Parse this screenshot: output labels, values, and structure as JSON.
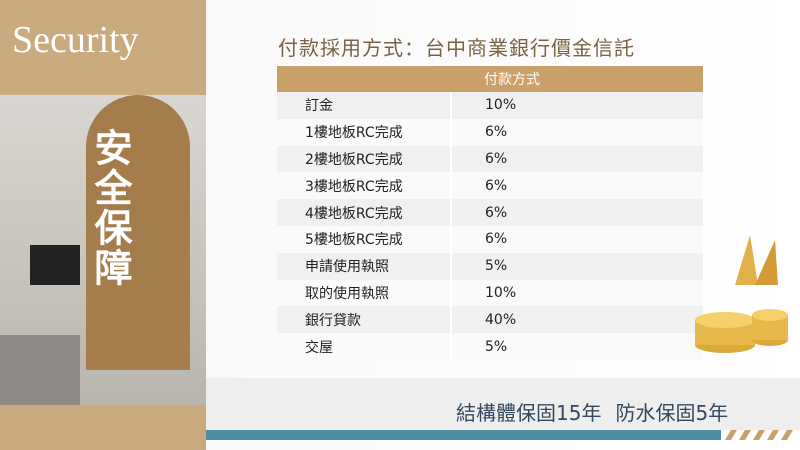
{
  "header": {
    "title": "Security",
    "side_title": "安全保障"
  },
  "table": {
    "title": "付款採用方式：台中商業銀行價金信託",
    "column_header": "付款方式",
    "rows": [
      [
        "訂金",
        "10%"
      ],
      [
        "1樓地板RC完成",
        "6%"
      ],
      [
        "2樓地板RC完成",
        "6%"
      ],
      [
        "3樓地板RC完成",
        "6%"
      ],
      [
        "4樓地板RC完成",
        "6%"
      ],
      [
        "5樓地板RC完成",
        "6%"
      ],
      [
        "申請使用執照",
        "5%"
      ],
      [
        "取的使用執照",
        "10%"
      ],
      [
        "銀行貸款",
        "40%"
      ],
      [
        "交屋",
        "5%"
      ]
    ]
  },
  "footer": {
    "items": [
      "結構體保固15年",
      "防水保固5年"
    ]
  }
}
